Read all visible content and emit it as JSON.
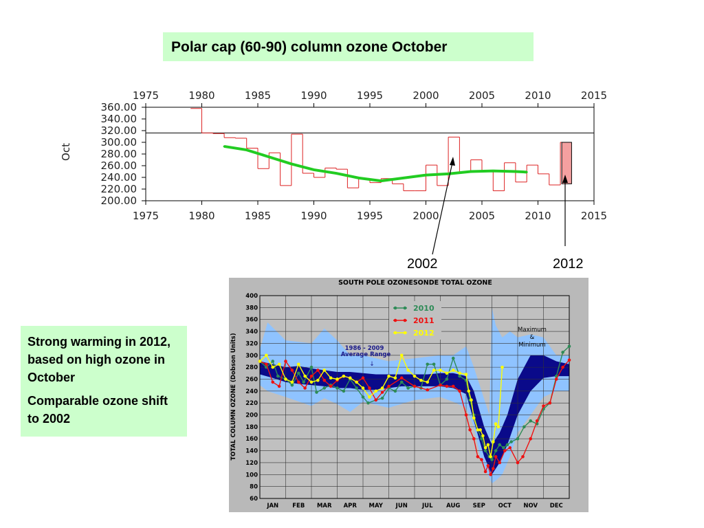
{
  "title": "Polar cap (60-90) column ozone October",
  "notes": [
    "Strong warming in 2012, based on high ozone in October",
    "Comparable ozone shift to 2002"
  ],
  "annotations": {
    "year_2002": "2002",
    "year_2012": "2012"
  },
  "colors": {
    "title_bg": "#ccffcc",
    "step_line": "#dd2222",
    "trend_line": "#22cc22",
    "bar_2012": "#f4a0a0",
    "sonde_bg": "#b9b9b9",
    "max_min_band": "#8fc3ff",
    "avg_band": "#0a0a8a",
    "series_2010": "#2e8b57",
    "series_2011": "#ee1111",
    "series_2012": "#ffff00"
  },
  "chart_data": [
    {
      "type": "line",
      "ylabel": "Oct",
      "xlim": [
        1975,
        2015
      ],
      "ylim": [
        200,
        360
      ],
      "x_ticks": [
        "1975",
        "1980",
        "1985",
        "1990",
        "1995",
        "2000",
        "2005",
        "2010",
        "2015"
      ],
      "y_ticks": [
        "200.00",
        "220.00",
        "240.00",
        "260.00",
        "280.00",
        "300.00",
        "320.00",
        "340.00",
        "360.00"
      ],
      "reference_line": 316,
      "series": [
        {
          "style": "step",
          "x": [
            1979,
            1980,
            1981,
            1982,
            1983,
            1984,
            1985,
            1986,
            1987,
            1988,
            1989,
            1990,
            1991,
            1992,
            1993,
            1994,
            1995,
            1996,
            1997,
            1998,
            1999,
            2000,
            2001,
            2002,
            2003,
            2004,
            2005,
            2006,
            2007,
            2008,
            2009,
            2010,
            2011,
            2012
          ],
          "values": [
            358,
            316,
            315,
            308,
            307,
            290,
            255,
            282,
            226,
            314,
            247,
            240,
            256,
            254,
            222,
            237,
            231,
            238,
            229,
            217,
            217,
            261,
            226,
            309,
            249,
            270,
            250,
            217,
            265,
            232,
            261,
            246,
            227,
            300
          ]
        },
        {
          "style": "smooth",
          "x": [
            1982,
            1984,
            1986,
            1988,
            1990,
            1992,
            1994,
            1996,
            1998,
            2000,
            2002,
            2004,
            2006,
            2008,
            2009
          ],
          "values": [
            293,
            287,
            275,
            263,
            253,
            247,
            239,
            234,
            239,
            244,
            246,
            250,
            251,
            250,
            249
          ]
        },
        {
          "style": "bar",
          "x": [
            2012
          ],
          "values": [
            300
          ],
          "baseline": 229
        }
      ]
    },
    {
      "type": "line",
      "title": "SOUTH POLE OZONESONDE TOTAL OZONE",
      "ylabel": "TOTAL COLUMN OZONE (Dobson Units)",
      "ylim": [
        60,
        400
      ],
      "categories": [
        "JAN",
        "FEB",
        "MAR",
        "APR",
        "MAY",
        "JUN",
        "JUL",
        "AUG",
        "SEP",
        "OCT",
        "NOV",
        "DEC"
      ],
      "y_ticks": [
        "60",
        "80",
        "100",
        "120",
        "140",
        "160",
        "180",
        "200",
        "220",
        "240",
        "260",
        "280",
        "300",
        "320",
        "340",
        "360",
        "380",
        "400"
      ],
      "band_labels": {
        "average": "1986 - 2009\nAverage Range",
        "extreme": "Maximum\n&\nMinimum"
      },
      "average_range": {
        "x": [
          0,
          0.5,
          1,
          1.5,
          2,
          2.5,
          3,
          3.5,
          4,
          4.5,
          5,
          5.5,
          6,
          6.5,
          7,
          7.5,
          8,
          8.3,
          8.7,
          9,
          9.3,
          9.6,
          10,
          10.5,
          11,
          11.5,
          12
        ],
        "upper": [
          290,
          285,
          280,
          282,
          278,
          275,
          272,
          272,
          270,
          268,
          268,
          268,
          268,
          268,
          270,
          270,
          265,
          240,
          180,
          150,
          170,
          200,
          260,
          300,
          300,
          290,
          285
        ],
        "lower": [
          268,
          262,
          255,
          252,
          250,
          248,
          245,
          245,
          242,
          242,
          245,
          248,
          248,
          248,
          248,
          245,
          235,
          190,
          130,
          100,
          120,
          150,
          200,
          240,
          262,
          265,
          265
        ]
      },
      "extreme_range": {
        "x": [
          0,
          0.3,
          1,
          2,
          2.5,
          3,
          3.5,
          4,
          5,
          6,
          7,
          7.5,
          8,
          8.3,
          8.6,
          8.9,
          9,
          9.15,
          9.4,
          9.7,
          10,
          10.5,
          11,
          11.5,
          12
        ],
        "upper": [
          310,
          355,
          325,
          320,
          345,
          325,
          300,
          300,
          290,
          295,
          300,
          300,
          315,
          280,
          240,
          200,
          380,
          350,
          330,
          340,
          330,
          335,
          330,
          300,
          300
        ],
        "lower": [
          250,
          240,
          230,
          215,
          228,
          218,
          205,
          222,
          212,
          225,
          230,
          222,
          212,
          180,
          120,
          95,
          85,
          90,
          100,
          130,
          170,
          200,
          230,
          240,
          240
        ]
      },
      "series": [
        {
          "name": "2010",
          "x": [
            0,
            0.25,
            0.5,
            0.7,
            1,
            1.25,
            1.5,
            1.7,
            2,
            2.2,
            2.5,
            2.75,
            3,
            3.25,
            3.5,
            3.75,
            4,
            4.2,
            4.5,
            4.75,
            5,
            5.25,
            5.5,
            5.75,
            6,
            6.25,
            6.5,
            6.75,
            7,
            7.25,
            7.5,
            7.75,
            8,
            8.15,
            8.3,
            8.45,
            8.6,
            8.75,
            8.9,
            9,
            9.15,
            9.3,
            9.45,
            9.6,
            9.75,
            10,
            10.25,
            10.5,
            10.75,
            11,
            11.25,
            11.5,
            11.75,
            12
          ],
          "values": [
            290,
            280,
            290,
            265,
            260,
            250,
            270,
            255,
            280,
            238,
            245,
            250,
            245,
            240,
            260,
            245,
            230,
            220,
            225,
            228,
            245,
            240,
            255,
            245,
            248,
            245,
            285,
            285,
            250,
            260,
            295,
            265,
            258,
            225,
            200,
            175,
            160,
            140,
            130,
            125,
            140,
            150,
            145,
            150,
            155,
            160,
            180,
            190,
            185,
            210,
            220,
            265,
            305,
            315
          ]
        },
        {
          "name": "2011",
          "x": [
            0,
            0.25,
            0.5,
            0.75,
            1,
            1.25,
            1.5,
            1.75,
            2,
            2.25,
            2.5,
            2.75,
            3,
            3.25,
            3.5,
            3.75,
            4,
            4.25,
            4.5,
            4.75,
            5,
            5.5,
            6,
            6.5,
            7,
            7.25,
            7.5,
            7.75,
            8,
            8.15,
            8.3,
            8.45,
            8.6,
            8.75,
            8.85,
            8.95,
            9.05,
            9.15,
            9.3,
            9.5,
            9.7,
            10,
            10.2,
            10.5,
            10.75,
            11,
            11.25,
            11.5,
            11.75,
            12
          ],
          "values": [
            290,
            285,
            255,
            248,
            290,
            275,
            255,
            245,
            265,
            275,
            258,
            248,
            258,
            265,
            262,
            255,
            262,
            245,
            225,
            238,
            248,
            262,
            248,
            242,
            250,
            248,
            248,
            240,
            200,
            175,
            160,
            130,
            125,
            105,
            115,
            100,
            110,
            130,
            120,
            140,
            145,
            120,
            130,
            160,
            190,
            215,
            220,
            260,
            280,
            292
          ]
        },
        {
          "name": "2012",
          "x": [
            0,
            0.25,
            0.5,
            0.75,
            1,
            1.25,
            1.5,
            1.75,
            2,
            2.25,
            2.5,
            2.75,
            3,
            3.25,
            3.5,
            3.75,
            4,
            4.25,
            4.5,
            4.75,
            5,
            5.25,
            5.5,
            5.75,
            6,
            6.25,
            6.5,
            6.75,
            7,
            7.25,
            7.5,
            7.75,
            8,
            8.1,
            8.2,
            8.3,
            8.45,
            8.55,
            8.65,
            8.75,
            8.85,
            8.95,
            9.05,
            9.15,
            9.25,
            9.4
          ],
          "values": [
            290,
            300,
            280,
            285,
            260,
            255,
            285,
            265,
            255,
            258,
            275,
            262,
            260,
            265,
            262,
            255,
            245,
            230,
            240,
            245,
            265,
            262,
            300,
            275,
            265,
            258,
            255,
            275,
            275,
            270,
            275,
            270,
            268,
            240,
            225,
            195,
            175,
            175,
            165,
            145,
            150,
            130,
            155,
            185,
            180,
            280
          ]
        }
      ]
    }
  ]
}
